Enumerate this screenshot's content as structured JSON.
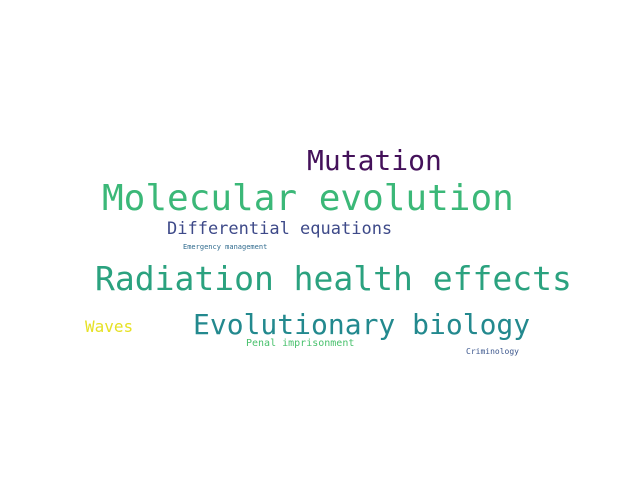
{
  "words": {
    "mutation": {
      "text": "Mutation",
      "color": "#44115a"
    },
    "molecular_evolution": {
      "text": "Molecular evolution",
      "color": "#3bb878"
    },
    "differential_equations": {
      "text": "Differential equations",
      "color": "#3e4a89"
    },
    "emergency_management": {
      "text": "Emergency management",
      "color": "#306b8e"
    },
    "radiation_health_effects": {
      "text": "Radiation health effects",
      "color": "#2ba27f"
    },
    "evolutionary_biology": {
      "text": "Evolutionary biology",
      "color": "#23898e"
    },
    "waves": {
      "text": "Waves",
      "color": "#e6e125"
    },
    "penal_imprisonment": {
      "text": "Penal imprisonment",
      "color": "#49c16d"
    },
    "criminology": {
      "text": "Criminology",
      "color": "#3a558c"
    }
  }
}
